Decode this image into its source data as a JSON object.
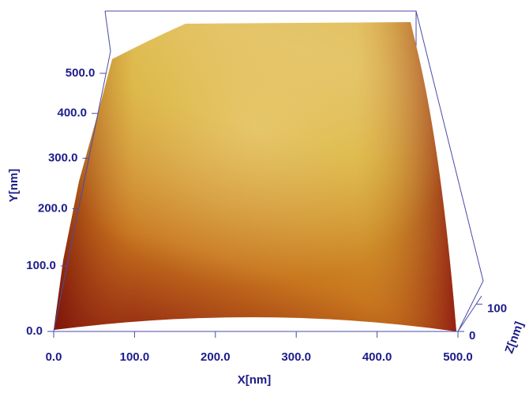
{
  "chart_data": {
    "type": "surface3d",
    "x_label": "X[nm]",
    "y_label": "Y[nm]",
    "z_label": "Z[nm]",
    "xlim": [
      0,
      500
    ],
    "ylim": [
      0,
      560
    ],
    "zlim": [
      0,
      130
    ],
    "xticks": [
      {
        "value": 0,
        "label": "0.0"
      },
      {
        "value": 100,
        "label": "100.0"
      },
      {
        "value": 200,
        "label": "200.0"
      },
      {
        "value": 300,
        "label": "300.0"
      },
      {
        "value": 400,
        "label": "400.0"
      },
      {
        "value": 500,
        "label": "500.0"
      }
    ],
    "yticks": [
      {
        "value": 0,
        "label": "0.0"
      },
      {
        "value": 100,
        "label": "100.0"
      },
      {
        "value": 200,
        "label": "200.0"
      },
      {
        "value": 300,
        "label": "300.0"
      },
      {
        "value": 400,
        "label": "400.0"
      },
      {
        "value": 500,
        "label": "500.0"
      }
    ],
    "zticks": [
      0,
      100
    ]
  }
}
